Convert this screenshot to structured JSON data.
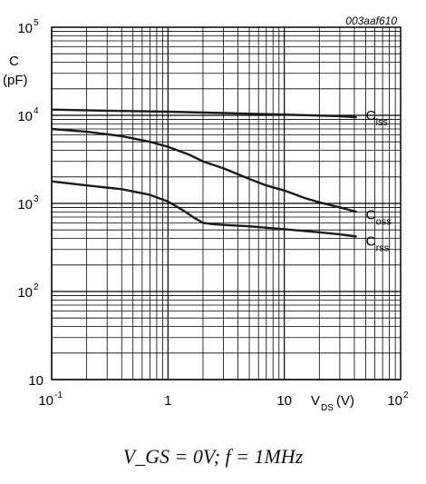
{
  "figure_code": "003aaf610",
  "condition_text": "V_GS = 0V; f = 1MHz",
  "chart_data": {
    "type": "line",
    "xscale": "log",
    "yscale": "log",
    "xlim": [
      0.1,
      100
    ],
    "ylim": [
      10,
      100000
    ],
    "grid": true,
    "xlabel": {
      "main": "V",
      "sub": "DS",
      "unit": "(V)"
    },
    "ylabel": {
      "line1": "C",
      "line2": "(pF)"
    },
    "x_ticks": [
      {
        "value": 0.1,
        "base": "10",
        "exp": "-1"
      },
      {
        "value": 1,
        "base": "1",
        "exp": ""
      },
      {
        "value": 10,
        "base": "10",
        "exp": ""
      },
      {
        "value": 100,
        "base": "10",
        "exp": "2"
      }
    ],
    "y_ticks": [
      {
        "value": 10,
        "base": "10",
        "exp": ""
      },
      {
        "value": 100,
        "base": "10",
        "exp": "2"
      },
      {
        "value": 1000,
        "base": "10",
        "exp": "3"
      },
      {
        "value": 10000,
        "base": "10",
        "exp": "4"
      },
      {
        "value": 100000,
        "base": "10",
        "exp": "5"
      }
    ],
    "series": [
      {
        "name": "C",
        "sub": "iss",
        "x": [
          0.1,
          0.3,
          1,
          3,
          10,
          30,
          42
        ],
        "y": [
          11600,
          11300,
          11000,
          10600,
          10200,
          9800,
          9500
        ]
      },
      {
        "name": "C",
        "sub": "oss",
        "x": [
          0.1,
          0.2,
          0.4,
          0.7,
          1,
          1.5,
          2,
          3,
          5,
          7,
          10,
          15,
          20,
          30,
          42
        ],
        "y": [
          7000,
          6500,
          5800,
          5000,
          4400,
          3600,
          3000,
          2500,
          1900,
          1600,
          1400,
          1150,
          1030,
          900,
          800
        ]
      },
      {
        "name": "C",
        "sub": "rss",
        "x": [
          0.1,
          0.2,
          0.4,
          0.7,
          1,
          1.3,
          1.7,
          2,
          2.5,
          3,
          5,
          10,
          20,
          30,
          42
        ],
        "y": [
          1780,
          1600,
          1450,
          1250,
          1050,
          860,
          680,
          600,
          580,
          570,
          550,
          510,
          470,
          445,
          420
        ]
      }
    ]
  }
}
